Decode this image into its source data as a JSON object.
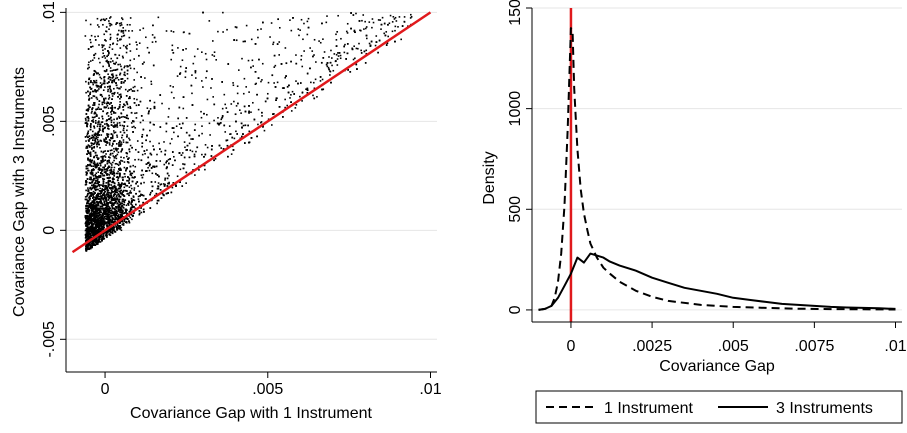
{
  "chart_data": [
    {
      "type": "scatter",
      "xlabel": "Covariance Gap with 1 Instrument",
      "ylabel": "Covariance Gap with 3 Instruments",
      "xlim": [
        -0.0012,
        0.0102
      ],
      "ylim": [
        -0.0065,
        0.0102
      ],
      "xticks": [
        0,
        0.005,
        0.01
      ],
      "xtick_labels": [
        "0",
        ".005",
        ".01"
      ],
      "yticks": [
        -0.005,
        0,
        0.005,
        0.01
      ],
      "ytick_labels": [
        "-.005",
        "0",
        ".005",
        ".01"
      ],
      "grid": "horizontal",
      "reference_line": {
        "x": [
          -0.001,
          0.01
        ],
        "y": [
          -0.001,
          0.01
        ],
        "color": "#e0191c"
      },
      "point_color": "#000000",
      "series": [
        {
          "points_description": "dense cloud of several thousand black points concentrated near (0, 0.001), spreading above the 45-degree line",
          "x": [
            -0.0008,
            -0.0005,
            -0.0003,
            -0.0002,
            0,
            0,
            0.0001,
            0.0002,
            0.0003,
            0.0005,
            0.0008,
            0.001,
            0.0012,
            0.0015,
            0.002,
            0.0025,
            0.003,
            0.0035,
            0.004,
            0.005,
            0.006,
            0.007,
            0.008,
            0.009,
            0.0095,
            0.0002,
            0.0004,
            0.0001,
            0.0006,
            0.001
          ],
          "y": [
            -0.0006,
            0,
            0.0005,
            0.003,
            0.001,
            0.006,
            0.002,
            0.0095,
            0.0015,
            0.0035,
            0.002,
            0.004,
            0.0025,
            0.003,
            0.004,
            0.005,
            0.006,
            0.007,
            0.0065,
            0.008,
            0.0085,
            0.009,
            0.0095,
            0.0098,
            0.0099,
            0.0075,
            0.005,
            -0.0004,
            0.0012,
            0.0018
          ]
        }
      ]
    },
    {
      "type": "line",
      "xlabel": "Covariance Gap",
      "ylabel": "Density",
      "xlim": [
        -0.0012,
        0.0102
      ],
      "ylim": [
        -60,
        1500
      ],
      "xticks": [
        0,
        0.0025,
        0.005,
        0.0075,
        0.01
      ],
      "xtick_labels": [
        "0",
        ".0025",
        ".005",
        ".0075",
        ".01"
      ],
      "yticks": [
        0,
        500,
        1000,
        1500
      ],
      "ytick_labels": [
        "0",
        "500",
        "1000",
        "1500"
      ],
      "grid": "horizontal",
      "vertical_line": {
        "x": 0,
        "color": "#e0191c"
      },
      "legend": {
        "position": "bottom",
        "entries": [
          "1 Instrument",
          "3 Instruments"
        ]
      },
      "series": [
        {
          "name": "1 Instrument",
          "style": "dashed",
          "x": [
            -0.001,
            -0.0008,
            -0.0006,
            -0.0005,
            -0.0004,
            -0.0003,
            -0.0002,
            -0.0001,
            0,
            5e-05,
            0.0001,
            0.0002,
            0.0003,
            0.0004,
            0.0005,
            0.0006,
            0.0008,
            0.001,
            0.0012,
            0.0015,
            0.002,
            0.0025,
            0.003,
            0.004,
            0.005,
            0.006,
            0.007,
            0.008,
            0.009,
            0.01
          ],
          "y": [
            0,
            5,
            20,
            60,
            140,
            280,
            520,
            900,
            1400,
            1380,
            1100,
            800,
            600,
            480,
            400,
            330,
            260,
            210,
            180,
            140,
            95,
            65,
            45,
            25,
            15,
            10,
            6,
            4,
            3,
            2
          ]
        },
        {
          "name": "3 Instruments",
          "style": "solid",
          "x": [
            -0.001,
            -0.0008,
            -0.0006,
            -0.0004,
            -0.0002,
            0,
            0.0002,
            0.0004,
            0.0006,
            0.0008,
            0.001,
            0.0012,
            0.0015,
            0.002,
            0.0025,
            0.003,
            0.0035,
            0.004,
            0.0045,
            0.005,
            0.0055,
            0.006,
            0.0065,
            0.007,
            0.0075,
            0.008,
            0.0085,
            0.009,
            0.0095,
            0.01
          ],
          "y": [
            0,
            5,
            20,
            60,
            120,
            180,
            260,
            235,
            280,
            270,
            260,
            240,
            220,
            195,
            160,
            135,
            110,
            95,
            80,
            60,
            50,
            40,
            30,
            25,
            20,
            15,
            12,
            10,
            8,
            5
          ]
        }
      ]
    }
  ]
}
